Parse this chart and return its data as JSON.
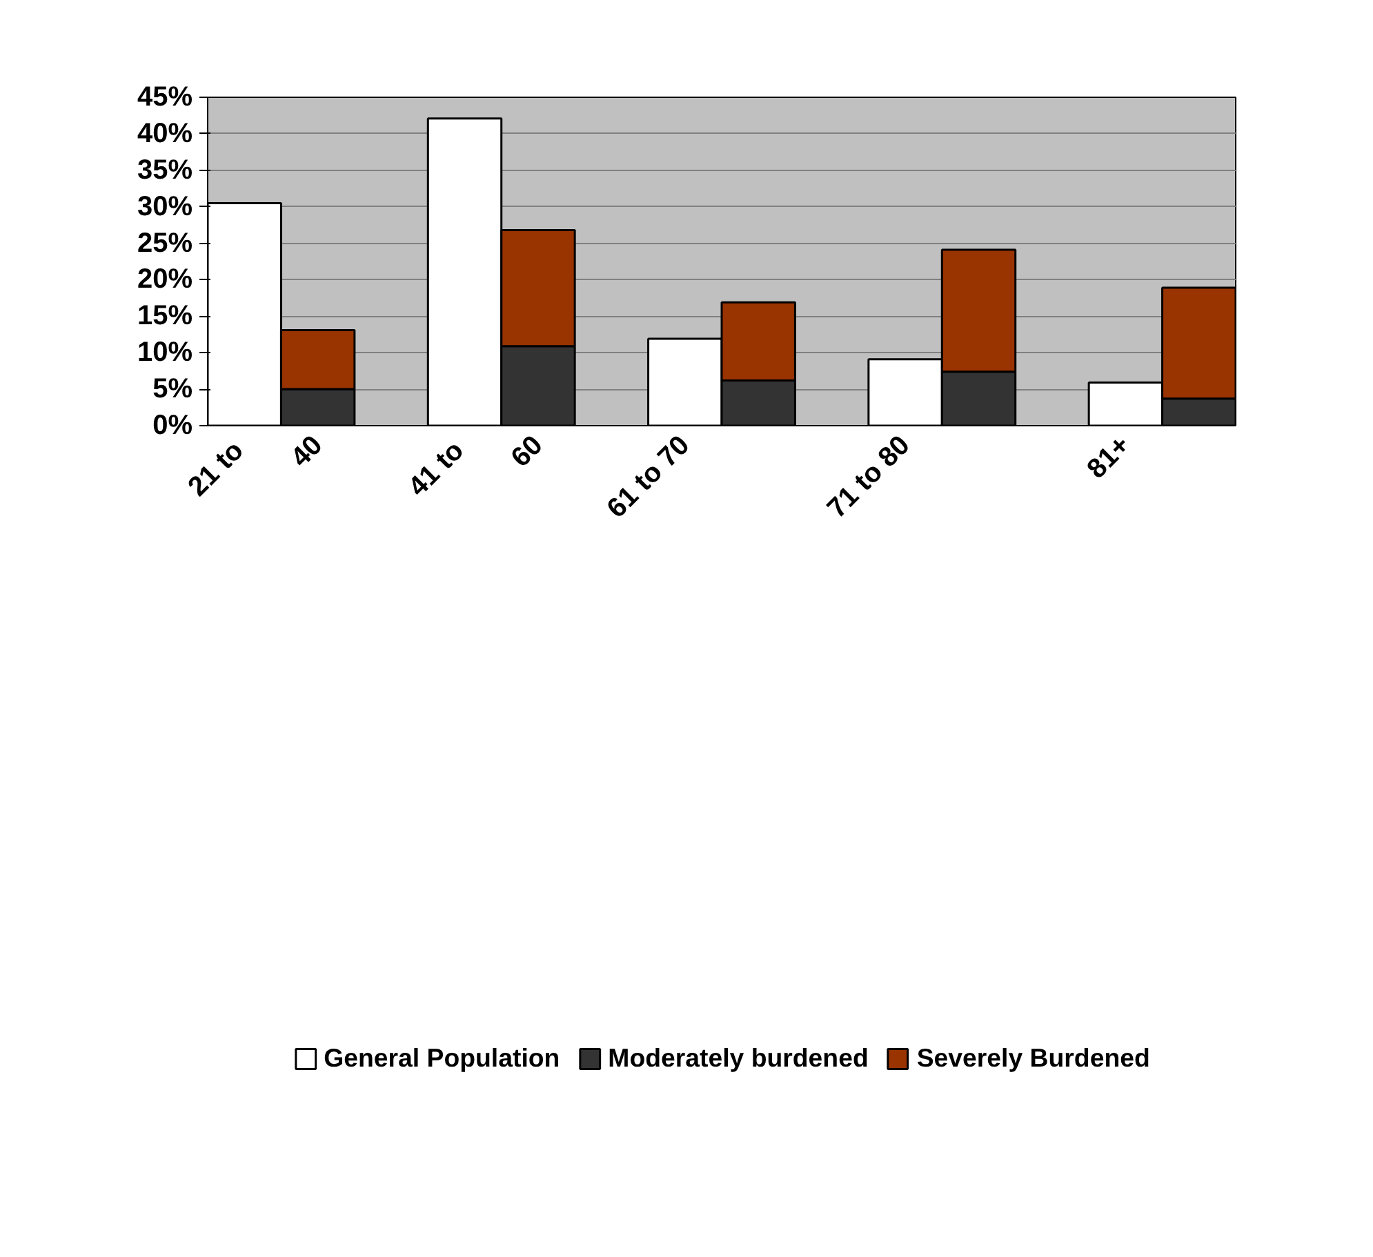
{
  "chart_data": {
    "type": "bar",
    "stacked": true,
    "categories": [
      "21  to",
      "40",
      null,
      "41  to",
      "60",
      null,
      "61 to 70",
      null,
      null,
      "71 to 80",
      null,
      null,
      "81+",
      null
    ],
    "series": [
      {
        "name": "General Population",
        "color": "#ffffff",
        "values": [
          30.5,
          null,
          null,
          42.1,
          null,
          null,
          11.9,
          null,
          null,
          9.1,
          null,
          null,
          5.9,
          null
        ]
      },
      {
        "name": "Moderately burdened",
        "color": "#333333",
        "values": [
          null,
          5.0,
          null,
          null,
          10.9,
          null,
          null,
          6.2,
          null,
          null,
          7.4,
          null,
          null,
          3.7
        ]
      },
      {
        "name": "Severely Burdened",
        "color": "#993300",
        "values": [
          null,
          8.1,
          null,
          null,
          15.9,
          null,
          null,
          10.7,
          null,
          null,
          16.7,
          null,
          null,
          15.2
        ]
      }
    ],
    "ylim": [
      0,
      45
    ],
    "yticks": [
      {
        "value": 0,
        "label": "0%"
      },
      {
        "value": 5,
        "label": "5%"
      },
      {
        "value": 10,
        "label": "10%"
      },
      {
        "value": 15,
        "label": "15%"
      },
      {
        "value": 20,
        "label": "20%"
      },
      {
        "value": 25,
        "label": "25%"
      },
      {
        "value": 30,
        "label": "30%"
      },
      {
        "value": 35,
        "label": "35%"
      },
      {
        "value": 40,
        "label": "40%"
      },
      {
        "value": 45,
        "label": "45%"
      }
    ],
    "grid": "y",
    "legend": "bottom"
  }
}
